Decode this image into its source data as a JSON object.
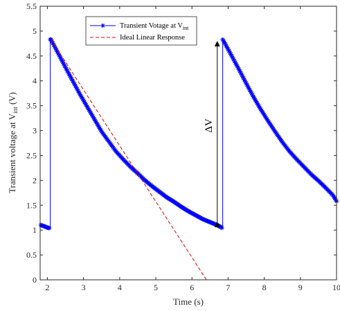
{
  "chart_data": {
    "type": "line",
    "xlabel": "Time (s)",
    "ylabel_main": "Transient voltage at V",
    "ylabel_sub": "int",
    "ylabel_unit": " (V)",
    "xlim": [
      1.8,
      10
    ],
    "ylim": [
      0,
      5.5
    ],
    "xticks": [
      2,
      3,
      4,
      5,
      6,
      7,
      8,
      9,
      10
    ],
    "yticks": [
      0,
      0.5,
      1,
      1.5,
      2,
      2.5,
      3,
      3.5,
      4,
      4.5,
      5,
      5.5
    ],
    "grid": false,
    "legend_position": "top-left",
    "series": [
      {
        "name_main": "Transient Votage at V",
        "name_sub": "int",
        "color": "#0000ff",
        "marker": "asterisk",
        "x": [
          1.82,
          1.9,
          2.0,
          2.05,
          2.08,
          2.08,
          2.1,
          2.3,
          2.5,
          2.7,
          2.9,
          3.1,
          3.3,
          3.5,
          3.7,
          3.9,
          4.1,
          4.3,
          4.5,
          4.7,
          4.9,
          5.1,
          5.3,
          5.5,
          5.7,
          5.9,
          6.1,
          6.3,
          6.5,
          6.7,
          6.8,
          6.85,
          6.85,
          6.9,
          7.1,
          7.3,
          7.5,
          7.7,
          7.9,
          8.1,
          8.3,
          8.5,
          8.7,
          8.9,
          9.1,
          9.3,
          9.5,
          9.7,
          9.9,
          10.0
        ],
        "y": [
          1.1,
          1.08,
          1.05,
          1.04,
          1.03,
          4.83,
          4.83,
          4.55,
          4.27,
          4.0,
          3.73,
          3.48,
          3.23,
          2.98,
          2.78,
          2.58,
          2.42,
          2.27,
          2.14,
          2.0,
          1.88,
          1.77,
          1.66,
          1.57,
          1.47,
          1.38,
          1.3,
          1.22,
          1.16,
          1.1,
          1.06,
          1.03,
          4.83,
          4.77,
          4.5,
          4.23,
          3.95,
          3.68,
          3.43,
          3.2,
          2.98,
          2.77,
          2.58,
          2.42,
          2.27,
          2.12,
          1.99,
          1.85,
          1.7,
          1.58
        ]
      },
      {
        "name": "Ideal Linear Response",
        "color": "#e00000",
        "dash": true,
        "x": [
          2.1,
          6.4
        ],
        "y": [
          4.83,
          0.0
        ]
      }
    ],
    "annotations": [
      {
        "text": "ΔV",
        "x": 6.55,
        "y": 3.1
      }
    ],
    "arrow": {
      "x": 6.7,
      "y_from": 4.83,
      "y_to": 1.03
    }
  }
}
